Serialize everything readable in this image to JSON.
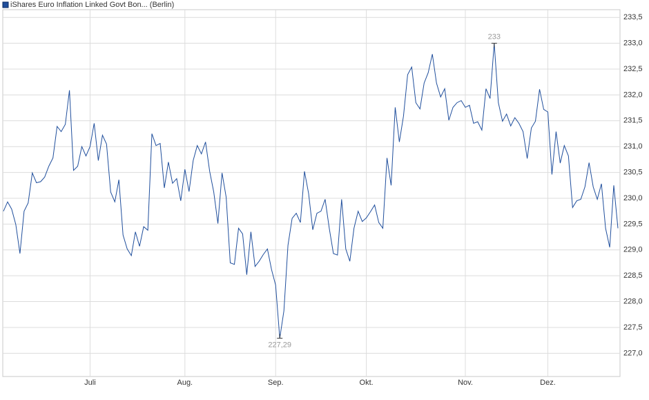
{
  "chart_data": {
    "type": "line",
    "series": [
      {
        "name": "iShares Euro Inflation Linked Govt Bon... (Berlin)",
        "color": "#1f4e9c",
        "values": [
          229.75,
          229.93,
          229.79,
          229.49,
          228.93,
          229.75,
          229.91,
          230.49,
          230.3,
          230.32,
          230.41,
          230.62,
          230.78,
          231.39,
          231.29,
          231.43,
          232.09,
          230.54,
          230.62,
          231.0,
          230.82,
          231.0,
          231.45,
          230.73,
          231.22,
          231.05,
          230.12,
          229.93,
          230.36,
          229.29,
          229.02,
          228.89,
          229.35,
          229.07,
          229.45,
          229.38,
          231.25,
          231.02,
          231.06,
          230.2,
          230.7,
          230.29,
          230.38,
          229.95,
          230.56,
          230.13,
          230.73,
          231.02,
          230.86,
          231.09,
          230.52,
          230.12,
          229.51,
          230.49,
          230.02,
          228.75,
          228.72,
          229.42,
          229.31,
          228.52,
          229.35,
          228.68,
          228.78,
          228.91,
          229.02,
          228.62,
          228.32,
          227.29,
          227.82,
          229.09,
          229.61,
          229.71,
          229.53,
          230.52,
          230.09,
          229.39,
          229.71,
          229.75,
          229.98,
          229.42,
          228.93,
          228.9,
          229.98,
          229.02,
          228.78,
          229.42,
          229.75,
          229.55,
          229.62,
          229.74,
          229.87,
          229.53,
          229.42,
          230.78,
          230.25,
          231.76,
          231.09,
          231.59,
          232.39,
          232.54,
          231.85,
          231.73,
          232.23,
          232.43,
          232.79,
          232.23,
          231.96,
          232.12,
          231.51,
          231.76,
          231.85,
          231.89,
          231.76,
          231.8,
          231.45,
          231.48,
          231.32,
          232.12,
          231.93,
          233.0,
          231.85,
          231.49,
          231.63,
          231.4,
          231.56,
          231.45,
          231.29,
          230.77,
          231.36,
          231.49,
          232.11,
          231.72,
          231.67,
          230.46,
          231.29,
          230.68,
          231.02,
          230.82,
          229.82,
          229.95,
          229.98,
          230.22,
          230.69,
          230.22,
          229.98,
          230.28,
          229.42,
          229.05,
          230.25,
          229.42
        ]
      }
    ],
    "annotations": [
      {
        "label": "233",
        "index": 119
      },
      {
        "label": "227,29",
        "index": 67
      }
    ],
    "xlim": [
      0,
      149
    ],
    "xticks": [
      {
        "value": 21,
        "label": "Juli"
      },
      {
        "value": 44,
        "label": "Aug."
      },
      {
        "value": 66,
        "label": "Sep."
      },
      {
        "value": 88,
        "label": "Okt."
      },
      {
        "value": 112,
        "label": "Nov."
      },
      {
        "value": 132,
        "label": "Dez."
      }
    ],
    "ylim": [
      226.55,
      233.65
    ],
    "yticks": [
      {
        "value": 227.0,
        "label": "227,0"
      },
      {
        "value": 227.5,
        "label": "227,5"
      },
      {
        "value": 228.0,
        "label": "228,0"
      },
      {
        "value": 228.5,
        "label": "228,5"
      },
      {
        "value": 229.0,
        "label": "229,0"
      },
      {
        "value": 229.5,
        "label": "229,5"
      },
      {
        "value": 230.0,
        "label": "230,0"
      },
      {
        "value": 230.5,
        "label": "230,5"
      },
      {
        "value": 231.0,
        "label": "231,0"
      },
      {
        "value": 231.5,
        "label": "231,5"
      },
      {
        "value": 232.0,
        "label": "232,0"
      },
      {
        "value": 232.5,
        "label": "232,5"
      },
      {
        "value": 233.0,
        "label": "233,0"
      },
      {
        "value": 233.5,
        "label": "233,5"
      }
    ],
    "grid": true
  }
}
